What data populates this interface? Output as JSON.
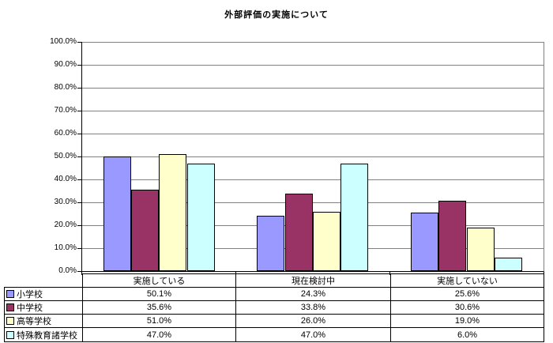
{
  "title": "外部評価の実施について",
  "chart_data": {
    "type": "bar",
    "title": "外部評価の実施について",
    "categories": [
      "実施している",
      "現在検討中",
      "実施していない"
    ],
    "series": [
      {
        "name": "小学校",
        "color": "#9999FF",
        "values": [
          50.1,
          24.3,
          25.6
        ]
      },
      {
        "name": "中学校",
        "color": "#993366",
        "values": [
          35.6,
          33.8,
          30.6
        ]
      },
      {
        "name": "高等学校",
        "color": "#FFFFCC",
        "values": [
          51.0,
          26.0,
          19.0
        ]
      },
      {
        "name": "特殊教育諸学校",
        "color": "#CCFFFF",
        "values": [
          47.0,
          47.0,
          6.0
        ]
      }
    ],
    "ylim": [
      0,
      100
    ],
    "ytick_step": 10,
    "ytick_labels_top_to_bottom": [
      "100.0%",
      "90.0%",
      "80.0%",
      "70.0%",
      "60.0%",
      "50.0%",
      "40.0%",
      "30.0%",
      "20.0%",
      "10.0%",
      "0.0%"
    ],
    "table_values_display": [
      [
        "50.1%",
        "24.3%",
        "25.6%"
      ],
      [
        "35.6%",
        "33.8%",
        "30.6%"
      ],
      [
        "51.0%",
        "26.0%",
        "19.0%"
      ],
      [
        "47.0%",
        "47.0%",
        "6.0%"
      ]
    ],
    "grid": true,
    "legend_position": "table-left",
    "colors": {
      "background": "#FFFFFF",
      "gridline": "#808080",
      "axis": "#000000",
      "bar_border": "#000000",
      "table_border": "#000000",
      "text": "#000000"
    }
  }
}
